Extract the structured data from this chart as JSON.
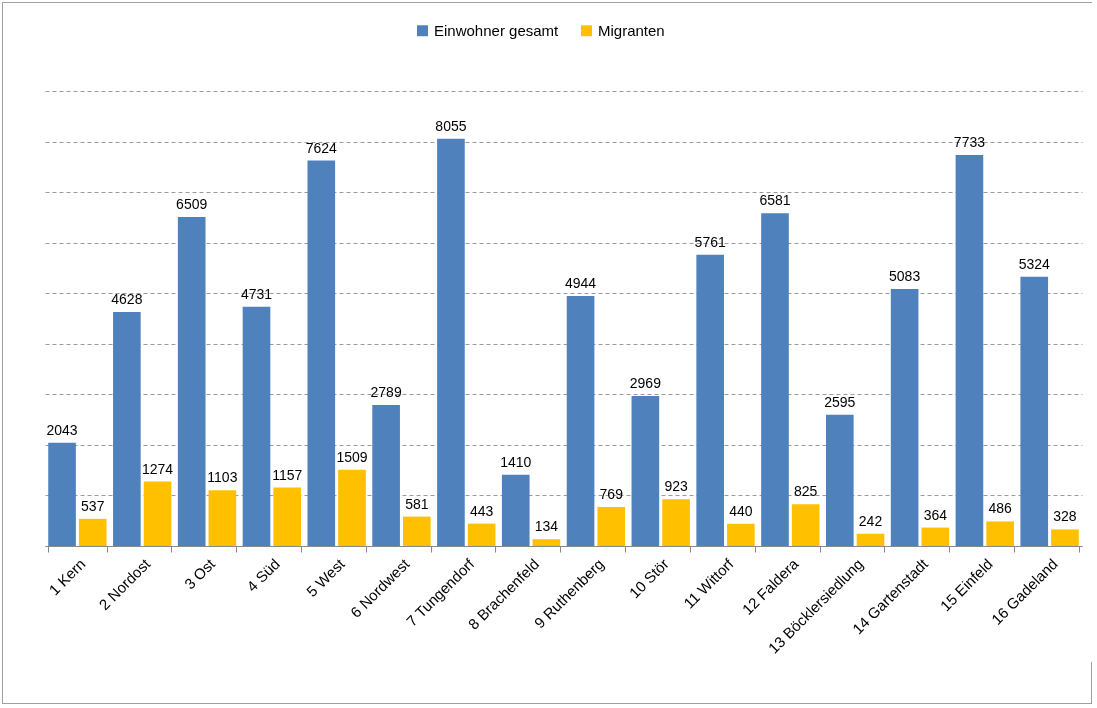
{
  "chart_data": {
    "type": "bar",
    "categories": [
      "1 Kern",
      "2 Nordost",
      "3 Ost",
      "4 Süd",
      "5 West",
      "6 Nordwest",
      "7 Tungendorf",
      "8 Brachenfeld",
      "9 Ruthenberg",
      "10 Stör",
      "11 Wittorf",
      "12 Faldera",
      "13 Böcklersiedlung",
      "14 Gartenstadt",
      "15 Einfeld",
      "16 Gadeland"
    ],
    "series": [
      {
        "name": "Einwohner gesamt",
        "color": "#4f81bd",
        "values": [
          2043,
          4628,
          6509,
          4731,
          7624,
          2789,
          8055,
          1410,
          4944,
          2969,
          5761,
          6581,
          2595,
          5083,
          7733,
          5324
        ]
      },
      {
        "name": "Migranten",
        "color": "#ffc000",
        "values": [
          537,
          1274,
          1103,
          1157,
          1509,
          581,
          443,
          134,
          769,
          923,
          440,
          825,
          242,
          364,
          486,
          328
        ]
      }
    ],
    "ylim": [
      0,
      9000
    ],
    "yticks": [
      {
        "value": 0,
        "label": null
      },
      {
        "value": 1000,
        "label": null
      },
      {
        "value": 2000,
        "label": null
      },
      {
        "value": 3000,
        "label": null
      },
      {
        "value": 4000,
        "label": null
      },
      {
        "value": 5000,
        "label": null
      },
      {
        "value": 6000,
        "label": null
      },
      {
        "value": 7000,
        "label": null
      },
      {
        "value": 8000,
        "label": null
      },
      {
        "value": 9000,
        "label": null
      }
    ],
    "grid": "y",
    "legend": "top",
    "data_labels": true,
    "tick_labels": "x"
  }
}
